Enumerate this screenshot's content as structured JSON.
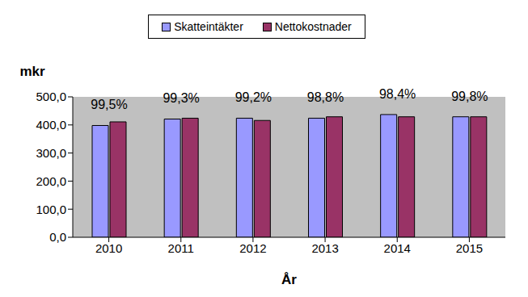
{
  "chart_data": {
    "type": "bar",
    "categories": [
      "2010",
      "2011",
      "2012",
      "2013",
      "2014",
      "2015"
    ],
    "series": [
      {
        "name": "Skatteintäkter",
        "color": "#9999FF",
        "values": [
          398,
          421,
          424,
          424,
          437,
          429
        ]
      },
      {
        "name": "Nettokostnader",
        "color": "#993366",
        "values": [
          411,
          424,
          416,
          429,
          429,
          429
        ]
      }
    ],
    "y_label": "mkr",
    "x_label": "År",
    "ylim": [
      0,
      500
    ],
    "yticks": [
      {
        "value": 0,
        "label": "0,0"
      },
      {
        "value": 100,
        "label": "100,0"
      },
      {
        "value": 200,
        "label": "200,0"
      },
      {
        "value": 300,
        "label": "300,0"
      },
      {
        "value": 400,
        "label": "400,0"
      },
      {
        "value": 500,
        "label": "500,0"
      }
    ],
    "grid": false,
    "legend": "top",
    "annotations": [
      {
        "category": "2010",
        "text": "99,5%"
      },
      {
        "category": "2011",
        "text": "99,3%"
      },
      {
        "category": "2012",
        "text": "99,2%"
      },
      {
        "category": "2013",
        "text": "98,8%"
      },
      {
        "category": "2014",
        "text": "98,4%"
      },
      {
        "category": "2015",
        "text": "99,8%"
      }
    ]
  }
}
